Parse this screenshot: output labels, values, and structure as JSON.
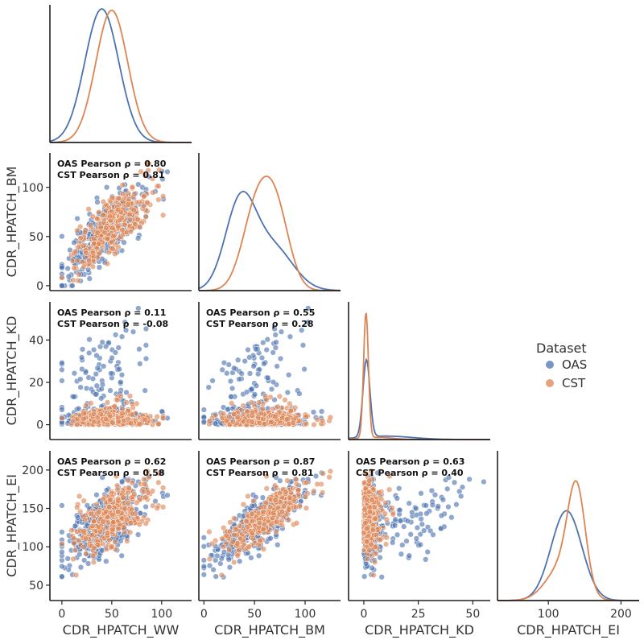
{
  "chart_data": {
    "type": "scatter",
    "title": "",
    "variables": [
      {
        "name": "CDR_HPATCH_WW",
        "ticks": [
          0,
          50,
          100
        ],
        "range": [
          -12,
          130
        ]
      },
      {
        "name": "CDR_HPATCH_BM",
        "ticks": [
          0,
          50,
          100
        ],
        "range": [
          -5,
          135
        ]
      },
      {
        "name": "CDR_HPATCH_KD",
        "ticks": [
          0,
          25,
          50
        ],
        "range": [
          -7,
          58
        ]
      },
      {
        "name": "CDR_HPATCH_EI",
        "ticks": [
          100,
          200
        ],
        "range": [
          30,
          225
        ]
      }
    ],
    "y_ticks": {
      "CDR_HPATCH_BM": [
        0,
        50,
        100
      ],
      "CDR_HPATCH_KD": [
        0,
        20,
        40
      ],
      "CDR_HPATCH_EI": [
        50,
        100,
        150,
        200
      ]
    },
    "series": [
      {
        "name": "OAS",
        "color": "#4c72b0"
      },
      {
        "name": "CST",
        "color": "#dd8452"
      }
    ],
    "legend": {
      "title": "Dataset",
      "position": "center-right",
      "entries": [
        "OAS",
        "CST"
      ]
    },
    "kde_peaks": {
      "CDR_HPATCH_WW": {
        "OAS": 40,
        "CST": 50
      },
      "CDR_HPATCH_BM": {
        "OAS": 38,
        "CST": 65
      },
      "CDR_HPATCH_KD": {
        "OAS": 1,
        "CST": 1
      },
      "CDR_HPATCH_EI": {
        "OAS": 125,
        "CST": 138
      }
    },
    "correlations": [
      {
        "x": "CDR_HPATCH_WW",
        "y": "CDR_HPATCH_BM",
        "lines": [
          "OAS Pearson ρ = 0.80",
          "CST Pearson ρ = 0.81"
        ]
      },
      {
        "x": "CDR_HPATCH_WW",
        "y": "CDR_HPATCH_KD",
        "lines": [
          "OAS Pearson ρ = 0.11",
          "CST Pearson ρ = -0.08"
        ]
      },
      {
        "x": "CDR_HPATCH_BM",
        "y": "CDR_HPATCH_KD",
        "lines": [
          "OAS Pearson ρ = 0.55",
          "CST Pearson ρ = 0.28"
        ]
      },
      {
        "x": "CDR_HPATCH_WW",
        "y": "CDR_HPATCH_EI",
        "lines": [
          "OAS Pearson ρ = 0.62",
          "CST Pearson ρ = 0.58"
        ]
      },
      {
        "x": "CDR_HPATCH_BM",
        "y": "CDR_HPATCH_EI",
        "lines": [
          "OAS Pearson ρ = 0.87",
          "CST Pearson ρ = 0.81"
        ]
      },
      {
        "x": "CDR_HPATCH_KD",
        "y": "CDR_HPATCH_EI",
        "lines": [
          "OAS Pearson ρ = 0.63",
          "CST Pearson ρ = 0.40"
        ]
      }
    ]
  }
}
